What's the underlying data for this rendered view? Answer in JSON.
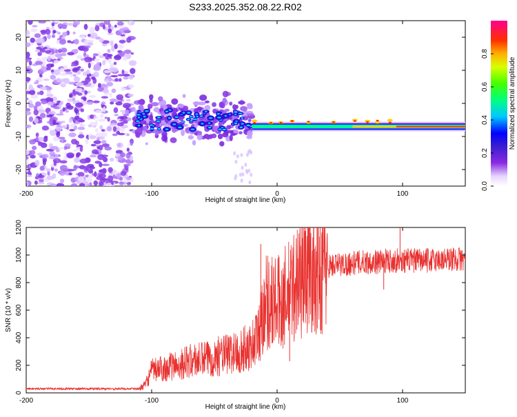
{
  "title": "S233.2025.352.08.22.R02",
  "chart_data": [
    {
      "type": "heatmap",
      "xlabel": "Height of straight line (km)",
      "ylabel": "Frequency (Hz)",
      "xlim": [
        -200,
        150
      ],
      "ylim": [
        -25,
        25
      ],
      "xticks": [
        -200,
        -100,
        0,
        100
      ],
      "yticks": [
        -20,
        -10,
        0,
        10,
        20
      ],
      "colorbar": {
        "label": "Normalized spectral amplitude",
        "range": [
          0,
          1
        ],
        "ticks": [
          "0.0",
          "0.2",
          "0.4",
          "0.6",
          "0.8"
        ]
      },
      "features": [
        {
          "x_range": [
            -200,
            -115
          ],
          "description": "noise",
          "freq_range": [
            -25,
            25
          ]
        },
        {
          "x_range": [
            -115,
            -20
          ],
          "freq_center": -5
        },
        {
          "x_range": [
            -20,
            150
          ],
          "freq_center": -7
        }
      ]
    },
    {
      "type": "line",
      "xlabel": "Height of straight line (km)",
      "ylabel": "SNR (10 * v/v)",
      "xlim": [
        -200,
        150
      ],
      "ylim": [
        0,
        1200
      ],
      "xticks": [
        -200,
        -100,
        0,
        100
      ],
      "yticks": [
        0,
        200,
        400,
        600,
        800,
        1000,
        1200
      ],
      "color": "#e8312f",
      "series": [
        {
          "name": "SNR",
          "x": [
            -200,
            -150,
            -110,
            -105,
            -100,
            -90,
            -80,
            -70,
            -60,
            -50,
            -40,
            -30,
            -25,
            -20,
            -15,
            -12,
            -10,
            -5,
            0,
            5,
            10,
            15,
            20,
            25,
            30,
            40,
            50,
            60,
            70,
            80,
            90,
            95,
            100,
            110,
            120,
            130,
            140,
            150
          ],
          "y": [
            30,
            30,
            30,
            60,
            160,
            180,
            200,
            230,
            240,
            260,
            280,
            300,
            320,
            350,
            420,
            550,
            680,
            660,
            650,
            680,
            720,
            800,
            860,
            890,
            900,
            920,
            930,
            940,
            950,
            950,
            960,
            960,
            960,
            960,
            960,
            965,
            970,
            970
          ]
        }
      ],
      "annotations": [
        {
          "x": -13,
          "y": 1080
        },
        {
          "x": 10,
          "y": 230
        },
        {
          "x": 85,
          "y": 750
        },
        {
          "x": 98,
          "y": 1240
        }
      ]
    }
  ]
}
